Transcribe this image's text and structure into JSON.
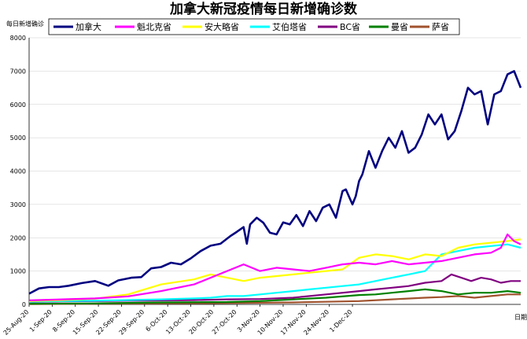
{
  "chart_data": {
    "type": "line",
    "title": "加拿大新冠疫情每日新增确诊数",
    "ylabel": "每日新增确诊",
    "xlabel": "日期",
    "ylim": [
      0,
      8000
    ],
    "yticks": [
      0,
      1000,
      2000,
      3000,
      4000,
      5000,
      6000,
      7000,
      8000
    ],
    "x_tick_labels": [
      "25-Aug-20",
      "1-Sep-20",
      "8-Sep-20",
      "15-Sep-20",
      "22-Sep-20",
      "29-Sep-20",
      "6-Oct-20",
      "13-Oct-20",
      "20-Oct-20",
      "27-Oct-20",
      "3-Nov-20",
      "10-Nov-20",
      "17-Nov-20",
      "24-Nov-20",
      "1-Dec-20"
    ],
    "x_range_days": [
      0,
      104
    ],
    "x_start_label": "25-Aug-20",
    "grid": true,
    "legend_position": "top",
    "series": [
      {
        "name": "加拿大",
        "color": "#000080",
        "points": [
          [
            0,
            320
          ],
          [
            3,
            480
          ],
          [
            6,
            520
          ],
          [
            9,
            520
          ],
          [
            12,
            560
          ],
          [
            16,
            640
          ],
          [
            20,
            700
          ],
          [
            24,
            560
          ],
          [
            27,
            720
          ],
          [
            31,
            800
          ],
          [
            34,
            820
          ],
          [
            37,
            1080
          ],
          [
            40,
            1120
          ],
          [
            43,
            1250
          ],
          [
            46,
            1200
          ],
          [
            49,
            1380
          ],
          [
            52,
            1600
          ],
          [
            55,
            1760
          ],
          [
            58,
            1820
          ],
          [
            61,
            2050
          ],
          [
            63,
            2180
          ],
          [
            65,
            2320
          ],
          [
            66,
            1820
          ],
          [
            67,
            2400
          ],
          [
            69,
            2600
          ],
          [
            71,
            2450
          ],
          [
            73,
            2150
          ],
          [
            75,
            2100
          ],
          [
            77,
            2460
          ],
          [
            79,
            2400
          ],
          [
            81,
            2680
          ],
          [
            83,
            2350
          ],
          [
            85,
            2800
          ],
          [
            87,
            2500
          ],
          [
            89,
            2900
          ],
          [
            91,
            3000
          ],
          [
            93,
            2600
          ],
          [
            95,
            3400
          ],
          [
            96,
            3450
          ],
          [
            98,
            3000
          ],
          [
            99,
            3250
          ],
          [
            100,
            3700
          ],
          [
            101,
            3900
          ],
          [
            103,
            4600
          ],
          [
            105,
            4100
          ],
          [
            107,
            4600
          ],
          [
            109,
            5000
          ],
          [
            111,
            4700
          ],
          [
            113,
            5200
          ],
          [
            115,
            4550
          ],
          [
            117,
            4700
          ],
          [
            119,
            5100
          ],
          [
            121,
            5700
          ],
          [
            123,
            5400
          ],
          [
            125,
            5700
          ],
          [
            127,
            4950
          ],
          [
            129,
            5200
          ],
          [
            131,
            5800
          ],
          [
            133,
            6500
          ],
          [
            135,
            6300
          ],
          [
            137,
            6400
          ],
          [
            139,
            5400
          ],
          [
            141,
            6300
          ],
          [
            143,
            6400
          ],
          [
            145,
            6900
          ],
          [
            147,
            7000
          ],
          [
            149,
            6500
          ]
        ]
      },
      {
        "name": "魁北克省",
        "color": "#FF00FF",
        "points": [
          [
            0,
            120
          ],
          [
            10,
            150
          ],
          [
            20,
            180
          ],
          [
            30,
            240
          ],
          [
            40,
            400
          ],
          [
            50,
            600
          ],
          [
            55,
            800
          ],
          [
            60,
            1000
          ],
          [
            65,
            1200
          ],
          [
            70,
            1000
          ],
          [
            75,
            1100
          ],
          [
            80,
            1050
          ],
          [
            85,
            1000
          ],
          [
            90,
            1100
          ],
          [
            95,
            1200
          ],
          [
            100,
            1250
          ],
          [
            105,
            1200
          ],
          [
            110,
            1300
          ],
          [
            115,
            1200
          ],
          [
            120,
            1250
          ],
          [
            125,
            1300
          ],
          [
            130,
            1400
          ],
          [
            135,
            1500
          ],
          [
            140,
            1550
          ],
          [
            143,
            1700
          ],
          [
            145,
            2100
          ],
          [
            147,
            1900
          ],
          [
            149,
            1800
          ]
        ]
      },
      {
        "name": "安大略省",
        "color": "#FFFF00",
        "points": [
          [
            0,
            100
          ],
          [
            10,
            130
          ],
          [
            20,
            170
          ],
          [
            30,
            300
          ],
          [
            40,
            600
          ],
          [
            50,
            750
          ],
          [
            55,
            900
          ],
          [
            60,
            800
          ],
          [
            65,
            700
          ],
          [
            70,
            800
          ],
          [
            75,
            850
          ],
          [
            80,
            900
          ],
          [
            85,
            950
          ],
          [
            90,
            1000
          ],
          [
            95,
            1050
          ],
          [
            100,
            1400
          ],
          [
            105,
            1500
          ],
          [
            110,
            1450
          ],
          [
            115,
            1350
          ],
          [
            120,
            1500
          ],
          [
            125,
            1450
          ],
          [
            130,
            1700
          ],
          [
            135,
            1800
          ],
          [
            140,
            1850
          ],
          [
            145,
            1900
          ],
          [
            149,
            1950
          ]
        ]
      },
      {
        "name": "艾伯塔省",
        "color": "#00FFFF",
        "points": [
          [
            0,
            80
          ],
          [
            10,
            100
          ],
          [
            20,
            110
          ],
          [
            30,
            130
          ],
          [
            40,
            150
          ],
          [
            50,
            180
          ],
          [
            55,
            200
          ],
          [
            60,
            250
          ],
          [
            65,
            250
          ],
          [
            70,
            300
          ],
          [
            75,
            350
          ],
          [
            80,
            400
          ],
          [
            85,
            450
          ],
          [
            90,
            500
          ],
          [
            95,
            550
          ],
          [
            100,
            600
          ],
          [
            105,
            700
          ],
          [
            110,
            800
          ],
          [
            115,
            900
          ],
          [
            120,
            1000
          ],
          [
            125,
            1500
          ],
          [
            130,
            1600
          ],
          [
            135,
            1700
          ],
          [
            140,
            1750
          ],
          [
            145,
            1800
          ],
          [
            149,
            1700
          ]
        ]
      },
      {
        "name": "BC省",
        "color": "#800080",
        "points": [
          [
            0,
            70
          ],
          [
            10,
            90
          ],
          [
            20,
            100
          ],
          [
            30,
            110
          ],
          [
            40,
            120
          ],
          [
            50,
            130
          ],
          [
            60,
            150
          ],
          [
            70,
            160
          ],
          [
            80,
            200
          ],
          [
            90,
            300
          ],
          [
            100,
            400
          ],
          [
            105,
            450
          ],
          [
            110,
            500
          ],
          [
            115,
            550
          ],
          [
            120,
            650
          ],
          [
            125,
            700
          ],
          [
            128,
            900
          ],
          [
            131,
            800
          ],
          [
            134,
            700
          ],
          [
            137,
            800
          ],
          [
            140,
            750
          ],
          [
            143,
            650
          ],
          [
            146,
            700
          ],
          [
            149,
            700
          ]
        ]
      },
      {
        "name": "曼省",
        "color": "#008000",
        "points": [
          [
            0,
            20
          ],
          [
            20,
            30
          ],
          [
            40,
            60
          ],
          [
            60,
            70
          ],
          [
            70,
            100
          ],
          [
            80,
            150
          ],
          [
            90,
            200
          ],
          [
            100,
            280
          ],
          [
            105,
            300
          ],
          [
            110,
            350
          ],
          [
            115,
            400
          ],
          [
            120,
            450
          ],
          [
            125,
            400
          ],
          [
            130,
            300
          ],
          [
            135,
            350
          ],
          [
            140,
            350
          ],
          [
            145,
            400
          ],
          [
            149,
            350
          ]
        ]
      },
      {
        "name": "萨省",
        "color": "#A0522D",
        "points": [
          [
            0,
            10
          ],
          [
            20,
            20
          ],
          [
            40,
            30
          ],
          [
            60,
            40
          ],
          [
            80,
            60
          ],
          [
            100,
            100
          ],
          [
            110,
            150
          ],
          [
            120,
            200
          ],
          [
            125,
            220
          ],
          [
            130,
            250
          ],
          [
            135,
            200
          ],
          [
            140,
            250
          ],
          [
            145,
            300
          ],
          [
            149,
            300
          ]
        ]
      }
    ]
  }
}
